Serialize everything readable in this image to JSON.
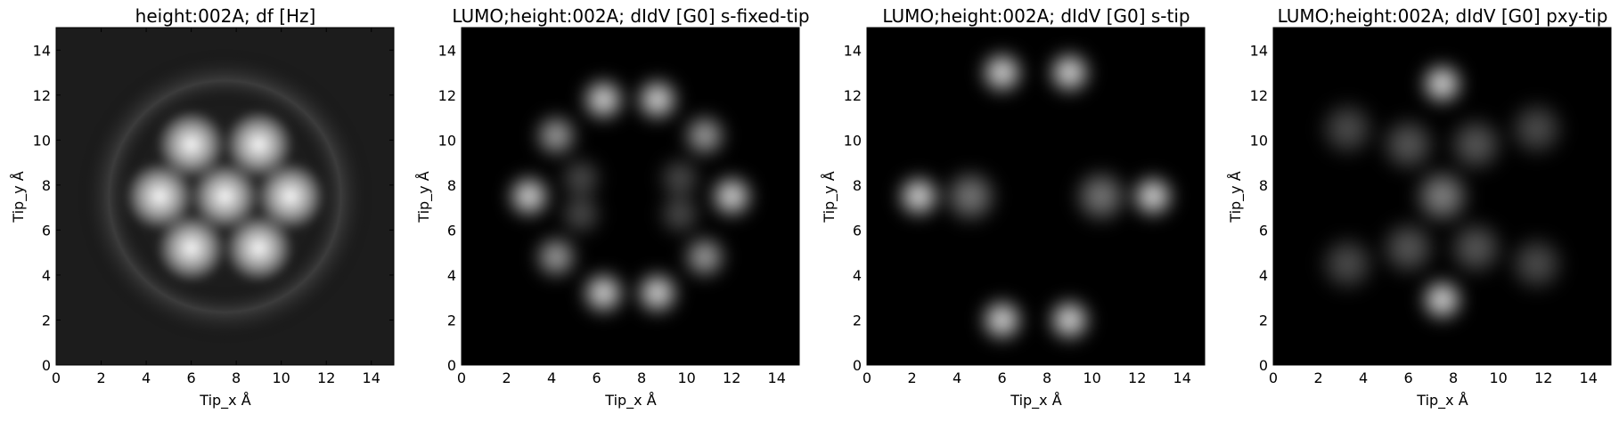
{
  "figure": {
    "panels": [
      {
        "title": "height:002A; df [Hz]",
        "xlabel": "Tip_x Å",
        "ylabel": "Tip_y Å"
      },
      {
        "title": "LUMO;height:002A; dIdV [G0] s-fixed-tip",
        "xlabel": "Tip_x Å",
        "ylabel": "Tip_y Å"
      },
      {
        "title": "LUMO;height:002A; dIdV [G0] s-tip",
        "xlabel": "Tip_x Å",
        "ylabel": "Tip_y Å"
      },
      {
        "title": "LUMO;height:002A; dIdV [G0] pxy-tip",
        "xlabel": "Tip_x Å",
        "ylabel": "Tip_y Å"
      }
    ]
  },
  "chart_data": [
    {
      "type": "heatmap",
      "title": "height:002A; df [Hz]",
      "xlabel": "Tip_x Å",
      "ylabel": "Tip_y Å",
      "xlim": [
        0,
        15
      ],
      "ylim": [
        0,
        15
      ],
      "xticks": [
        "0",
        "2",
        "4",
        "6",
        "8",
        "10",
        "12",
        "14"
      ],
      "yticks": [
        "0",
        "2",
        "4",
        "6",
        "8",
        "10",
        "12",
        "14"
      ],
      "colormap": "gray",
      "features": [
        {
          "x": 6.0,
          "y": 9.8,
          "intensity": 1.0
        },
        {
          "x": 9.0,
          "y": 9.8,
          "intensity": 1.0
        },
        {
          "x": 4.6,
          "y": 7.5,
          "intensity": 1.0
        },
        {
          "x": 7.5,
          "y": 7.5,
          "intensity": 1.0
        },
        {
          "x": 10.4,
          "y": 7.5,
          "intensity": 1.0
        },
        {
          "x": 6.0,
          "y": 5.2,
          "intensity": 1.0
        },
        {
          "x": 9.0,
          "y": 5.2,
          "intensity": 1.0
        }
      ]
    },
    {
      "type": "heatmap",
      "title": "LUMO;height:002A; dIdV [G0] s-fixed-tip",
      "xlabel": "Tip_x Å",
      "ylabel": "Tip_y Å",
      "xlim": [
        0,
        15
      ],
      "ylim": [
        0,
        15
      ],
      "xticks": [
        "0",
        "2",
        "4",
        "6",
        "8",
        "10",
        "12",
        "14"
      ],
      "yticks": [
        "0",
        "2",
        "4",
        "6",
        "8",
        "10",
        "12",
        "14"
      ],
      "colormap": "gray",
      "features": [
        {
          "x": 6.3,
          "y": 11.8,
          "intensity": 1.0
        },
        {
          "x": 8.7,
          "y": 11.8,
          "intensity": 1.0
        },
        {
          "x": 4.2,
          "y": 10.2,
          "intensity": 0.75
        },
        {
          "x": 10.8,
          "y": 10.2,
          "intensity": 0.75
        },
        {
          "x": 3.0,
          "y": 7.5,
          "intensity": 1.0
        },
        {
          "x": 12.0,
          "y": 7.5,
          "intensity": 1.0
        },
        {
          "x": 4.2,
          "y": 4.8,
          "intensity": 0.75
        },
        {
          "x": 10.8,
          "y": 4.8,
          "intensity": 0.75
        },
        {
          "x": 6.3,
          "y": 3.2,
          "intensity": 1.0
        },
        {
          "x": 8.7,
          "y": 3.2,
          "intensity": 1.0
        },
        {
          "x": 5.3,
          "y": 8.3,
          "intensity": 0.35
        },
        {
          "x": 9.7,
          "y": 8.3,
          "intensity": 0.35
        },
        {
          "x": 5.3,
          "y": 6.7,
          "intensity": 0.35
        },
        {
          "x": 9.7,
          "y": 6.7,
          "intensity": 0.35
        }
      ]
    },
    {
      "type": "heatmap",
      "title": "LUMO;height:002A; dIdV [G0] s-tip",
      "xlabel": "Tip_x Å",
      "ylabel": "Tip_y Å",
      "xlim": [
        0,
        15
      ],
      "ylim": [
        0,
        15
      ],
      "xticks": [
        "0",
        "2",
        "4",
        "6",
        "8",
        "10",
        "12",
        "14"
      ],
      "yticks": [
        "0",
        "2",
        "4",
        "6",
        "8",
        "10",
        "12",
        "14"
      ],
      "colormap": "gray",
      "features": [
        {
          "x": 6.0,
          "y": 13.0,
          "intensity": 1.0
        },
        {
          "x": 9.0,
          "y": 13.0,
          "intensity": 1.0
        },
        {
          "x": 2.3,
          "y": 7.5,
          "intensity": 1.0
        },
        {
          "x": 12.7,
          "y": 7.5,
          "intensity": 1.0
        },
        {
          "x": 6.0,
          "y": 2.0,
          "intensity": 1.0
        },
        {
          "x": 9.0,
          "y": 2.0,
          "intensity": 1.0
        },
        {
          "x": 4.6,
          "y": 7.5,
          "intensity": 0.55
        },
        {
          "x": 10.4,
          "y": 7.5,
          "intensity": 0.55
        }
      ]
    },
    {
      "type": "heatmap",
      "title": "LUMO;height:002A; dIdV [G0] pxy-tip",
      "xlabel": "Tip_x Å",
      "ylabel": "Tip_y Å",
      "xlim": [
        0,
        15
      ],
      "ylim": [
        0,
        15
      ],
      "xticks": [
        "0",
        "2",
        "4",
        "6",
        "8",
        "10",
        "12",
        "14"
      ],
      "yticks": [
        "0",
        "2",
        "4",
        "6",
        "8",
        "10",
        "12",
        "14"
      ],
      "colormap": "gray",
      "features": [
        {
          "x": 7.5,
          "y": 12.5,
          "intensity": 1.0
        },
        {
          "x": 7.5,
          "y": 2.9,
          "intensity": 1.0
        },
        {
          "x": 7.5,
          "y": 7.5,
          "intensity": 0.6
        },
        {
          "x": 6.0,
          "y": 9.8,
          "intensity": 0.4
        },
        {
          "x": 9.0,
          "y": 9.8,
          "intensity": 0.4
        },
        {
          "x": 6.0,
          "y": 5.2,
          "intensity": 0.4
        },
        {
          "x": 9.0,
          "y": 5.2,
          "intensity": 0.4
        },
        {
          "x": 3.3,
          "y": 10.5,
          "intensity": 0.35
        },
        {
          "x": 11.7,
          "y": 10.5,
          "intensity": 0.35
        },
        {
          "x": 3.3,
          "y": 4.5,
          "intensity": 0.35
        },
        {
          "x": 11.7,
          "y": 4.5,
          "intensity": 0.35
        }
      ]
    }
  ]
}
